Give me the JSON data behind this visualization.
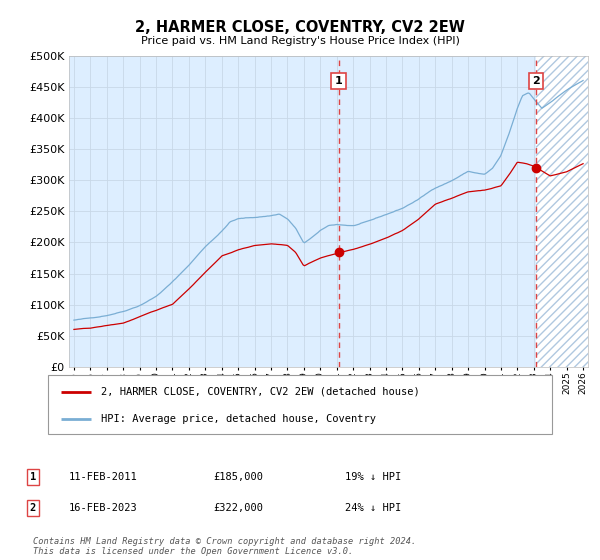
{
  "title": "2, HARMER CLOSE, COVENTRY, CV2 2EW",
  "subtitle": "Price paid vs. HM Land Registry's House Price Index (HPI)",
  "legend_line1": "2, HARMER CLOSE, COVENTRY, CV2 2EW (detached house)",
  "legend_line2": "HPI: Average price, detached house, Coventry",
  "transaction1_date": "11-FEB-2011",
  "transaction1_price": 185000,
  "transaction1_label": "19% ↓ HPI",
  "transaction2_date": "16-FEB-2023",
  "transaction2_price": 322000,
  "transaction2_label": "24% ↓ HPI",
  "hpi_color": "#7aaed4",
  "price_color": "#cc0000",
  "dot_color": "#cc0000",
  "bg_color": "#ddeeff",
  "hatch_edgecolor": "#b0c8e0",
  "vline_color": "#dd4444",
  "grid_color": "#c8d8e8",
  "footer": "Contains HM Land Registry data © Crown copyright and database right 2024.\nThis data is licensed under the Open Government Licence v3.0.",
  "ylim": [
    0,
    500000
  ],
  "yticks": [
    0,
    50000,
    100000,
    150000,
    200000,
    250000,
    300000,
    350000,
    400000,
    450000,
    500000
  ],
  "xstart_year": 1995,
  "xend_year": 2026,
  "transaction1_year": 2011.12,
  "transaction2_year": 2023.12
}
